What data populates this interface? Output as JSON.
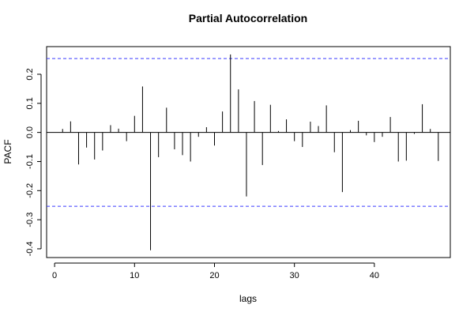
{
  "chart_data": {
    "type": "bar",
    "title": "Partial Autocorrelation",
    "xlabel": "lags",
    "ylabel": "PACF",
    "xlim": [
      -1,
      49.5
    ],
    "ylim": [
      -0.43,
      0.295
    ],
    "x_ticks": [
      0,
      10,
      20,
      30,
      40
    ],
    "y_ticks": [
      -0.4,
      -0.3,
      -0.2,
      -0.1,
      0.0,
      0.1,
      0.2
    ],
    "y_tick_labels": [
      "-0.4",
      "-0.3",
      "-0.2",
      "-0.1",
      "0.0",
      "0.1",
      "0.2"
    ],
    "confidence_bound": 0.254,
    "lags": [
      1,
      2,
      3,
      4,
      5,
      6,
      7,
      8,
      9,
      10,
      11,
      12,
      13,
      14,
      15,
      16,
      17,
      18,
      19,
      20,
      21,
      22,
      23,
      24,
      25,
      26,
      27,
      28,
      29,
      30,
      31,
      32,
      33,
      34,
      35,
      36,
      37,
      38,
      39,
      40,
      41,
      42,
      43,
      44,
      45,
      46,
      47,
      48
    ],
    "values": [
      0.012,
      0.038,
      -0.11,
      -0.052,
      -0.093,
      -0.062,
      0.025,
      0.013,
      -0.03,
      0.057,
      0.158,
      -0.405,
      -0.085,
      0.085,
      -0.058,
      -0.078,
      -0.1,
      -0.015,
      0.018,
      -0.045,
      0.072,
      0.268,
      0.148,
      -0.22,
      0.108,
      -0.112,
      0.095,
      0.005,
      0.045,
      -0.03,
      -0.05,
      0.037,
      0.022,
      0.093,
      -0.068,
      -0.205,
      0.008,
      0.04,
      -0.01,
      -0.033,
      -0.015,
      0.053,
      -0.1,
      -0.097,
      -0.005,
      0.097,
      0.012,
      -0.098
    ]
  }
}
